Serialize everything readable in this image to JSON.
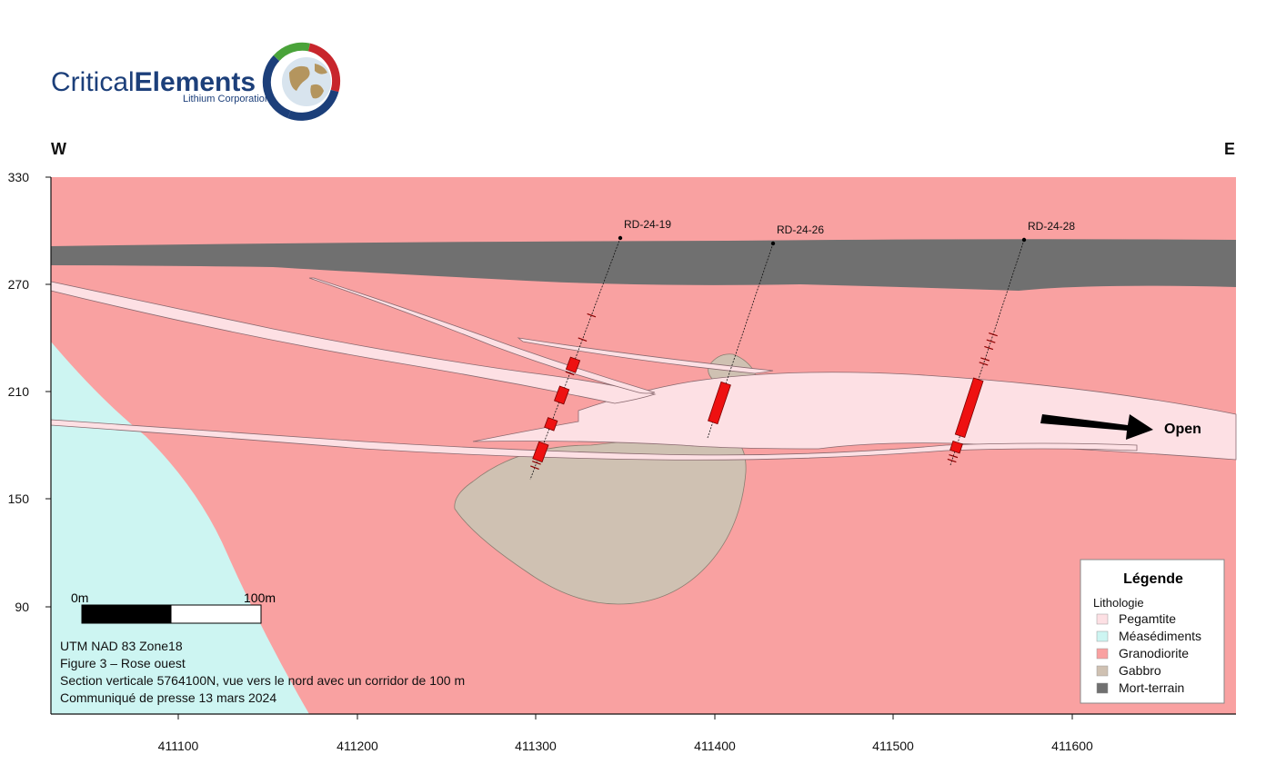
{
  "logo": {
    "word1": "Critical",
    "word2": "Elements",
    "subtitle": "Lithium Corporation"
  },
  "orientation": {
    "west": "W",
    "east": "E"
  },
  "axes": {
    "elevation_ticks": [
      "330",
      "270",
      "210",
      "150",
      "90"
    ],
    "easting_ticks": [
      "411100",
      "411200",
      "411300",
      "411400",
      "411500",
      "411600"
    ]
  },
  "drillholes": [
    {
      "id": "RD-24-19"
    },
    {
      "id": "RD-24-26"
    },
    {
      "id": "RD-24-28"
    }
  ],
  "annotation": {
    "open": "Open"
  },
  "scale_bar": {
    "start": "0m",
    "end": "100m"
  },
  "legend": {
    "title": "Légende",
    "subtitle": "Lithologie",
    "items": [
      {
        "label": "Pegamtite",
        "color": "#fde0e4"
      },
      {
        "label": "Méasédiments",
        "color": "#cdf5f2"
      },
      {
        "label": "Granodiorite",
        "color": "#f9a1a1"
      },
      {
        "label": "Gabbro",
        "color": "#cfc1b2"
      },
      {
        "label": "Mort-terrain",
        "color": "#707070"
      }
    ]
  },
  "colors": {
    "overburden": "#707070",
    "granodiorite": "#f9a1a1",
    "metasediment": "#cdf5f2",
    "pegmatite": "#fde0e4",
    "gabbro": "#cfc1b2",
    "intercept": "#ee1111",
    "logo_blue": "#1c3f7a",
    "logo_green": "#4aa33a",
    "logo_red": "#c8262c"
  },
  "caption": {
    "line1": "UTM NAD 83 Zone18",
    "line2": "Figure 3 – Rose ouest",
    "line3": "Section verticale 5764100N, vue vers le nord avec un corridor de 100 m",
    "line4": "Communiqué de presse 13 mars 2024"
  }
}
